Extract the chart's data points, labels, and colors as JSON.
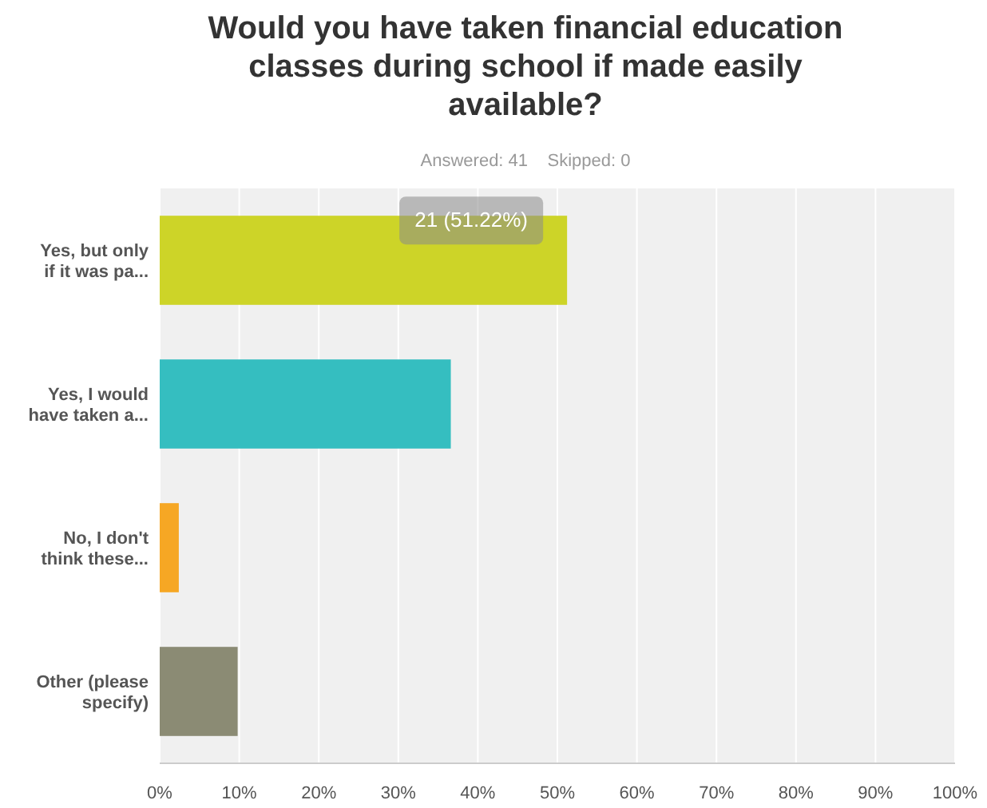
{
  "chart_data": {
    "type": "bar",
    "orientation": "horizontal",
    "title": "Would you have taken financial education classes during school if made easily available?",
    "subtitle": "Answered: 41    Skipped: 0",
    "categories": [
      "Yes, but only if it was pa...",
      "Yes, I would have taken a...",
      "No, I don't think these...",
      "Other (please specify)"
    ],
    "values": [
      51.22,
      36.6,
      2.4,
      9.8
    ],
    "colors": [
      "#cdd428",
      "#35bec0",
      "#f6a724",
      "#8b8b74"
    ],
    "xlim": [
      0,
      100
    ],
    "xticks": [
      {
        "value": 0,
        "label": "0%"
      },
      {
        "value": 10,
        "label": "10%"
      },
      {
        "value": 20,
        "label": "20%"
      },
      {
        "value": 30,
        "label": "30%"
      },
      {
        "value": 40,
        "label": "40%"
      },
      {
        "value": 50,
        "label": "50%"
      },
      {
        "value": 60,
        "label": "60%"
      },
      {
        "value": 70,
        "label": "70%"
      },
      {
        "value": 80,
        "label": "80%"
      },
      {
        "value": 90,
        "label": "90%"
      },
      {
        "value": 100,
        "label": "100%"
      }
    ],
    "grid": "x",
    "annotations": [
      {
        "text": "21 (51.22%)",
        "x": 51.22,
        "y": "Yes, but only if it was pa..."
      }
    ]
  }
}
